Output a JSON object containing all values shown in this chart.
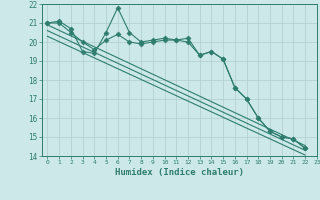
{
  "xlabel": "Humidex (Indice chaleur)",
  "x_values": [
    0,
    1,
    2,
    3,
    4,
    5,
    6,
    7,
    8,
    9,
    10,
    11,
    12,
    13,
    14,
    15,
    16,
    17,
    18,
    19,
    20,
    21,
    22,
    23
  ],
  "line1_y": [
    21.0,
    21.1,
    20.7,
    19.5,
    19.4,
    20.5,
    21.8,
    20.5,
    20.0,
    20.1,
    20.2,
    20.1,
    20.2,
    19.3,
    19.5,
    19.1,
    17.6,
    17.0,
    16.0,
    15.3,
    15.0,
    14.9,
    14.4,
    null
  ],
  "line2_y": [
    21.0,
    21.0,
    20.5,
    20.0,
    19.6,
    20.1,
    20.4,
    20.0,
    19.9,
    20.0,
    20.1,
    20.1,
    20.0,
    19.3,
    19.5,
    19.1,
    17.6,
    17.0,
    16.0,
    15.3,
    15.0,
    14.9,
    14.4,
    null
  ],
  "straight_line1": [
    [
      0,
      20.9
    ],
    [
      22,
      14.55
    ]
  ],
  "straight_line2": [
    [
      0,
      20.6
    ],
    [
      22,
      14.3
    ]
  ],
  "straight_line3": [
    [
      0,
      20.3
    ],
    [
      22,
      14.05
    ]
  ],
  "ylim": [
    14,
    22
  ],
  "xlim": [
    -0.5,
    23
  ],
  "yticks": [
    14,
    15,
    16,
    17,
    18,
    19,
    20,
    21,
    22
  ],
  "xticks": [
    0,
    1,
    2,
    3,
    4,
    5,
    6,
    7,
    8,
    9,
    10,
    11,
    12,
    13,
    14,
    15,
    16,
    17,
    18,
    19,
    20,
    21,
    22,
    23
  ],
  "line_color": "#2e7d6e",
  "bg_color": "#cce8e8",
  "grid_color": "#b0cccc",
  "marker": "D",
  "markersize": 2.5
}
